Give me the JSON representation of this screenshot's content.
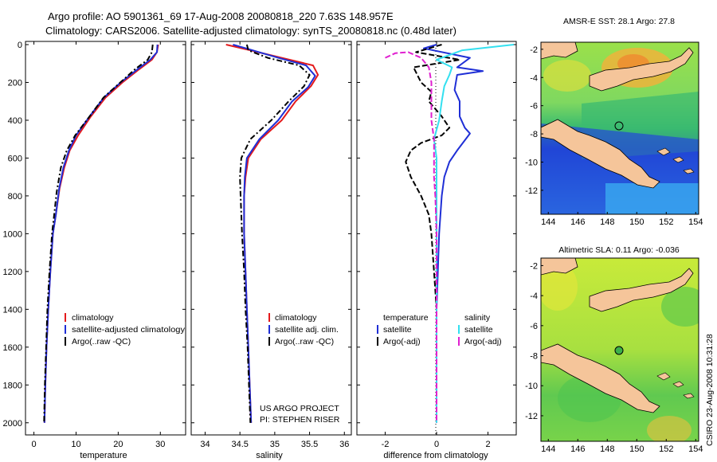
{
  "header": {
    "title_line1": "Argo profile: AO 5901361_69 17-Aug-2008 20080818_220 7.63S 148.957E",
    "title_line2": "Climatology: CARS2006. Satellite-adjusted climatology: synTS_20080818.nc (0.48d later)"
  },
  "credit": {
    "project": "US ARGO PROJECT",
    "pi": "PI: STEPHEN RISER",
    "stamp": "CSIRO 23-Aug-2008 10:31:28"
  },
  "colors": {
    "climatology": "#e41a1c",
    "satellite": "#1f2fd6",
    "argo": "#000000",
    "sat_sal": "#33e0f0",
    "argo_sal": "#e020d0",
    "land": "#f5c59a"
  },
  "chart_data": [
    {
      "type": "line",
      "name": "temperature-panel",
      "xlabel": "temperature",
      "ylabel": "",
      "xlim": [
        -2,
        36
      ],
      "ylim": [
        2060,
        0
      ],
      "xticks": [
        "0",
        "10",
        "20",
        "30"
      ],
      "xtick_values": [
        0,
        10,
        20,
        30
      ],
      "yticks": [
        "0",
        "200",
        "400",
        "600",
        "800",
        "1000",
        "1200",
        "1400",
        "1600",
        "1800",
        "2000"
      ],
      "ytick_values": [
        0,
        200,
        400,
        600,
        800,
        1000,
        1200,
        1400,
        1600,
        1800,
        2000
      ],
      "legend": [
        "climatology",
        "satellite-adjusted climatology",
        "Argo(..raw -QC)"
      ],
      "series": [
        {
          "name": "climatology",
          "color": "#e41a1c",
          "dash": "none",
          "points": [
            [
              29.5,
              0
            ],
            [
              29.2,
              40
            ],
            [
              28,
              80
            ],
            [
              25,
              130
            ],
            [
              21,
              200
            ],
            [
              17,
              280
            ],
            [
              13.5,
              380
            ],
            [
              10.5,
              480
            ],
            [
              8.5,
              560
            ],
            [
              7.2,
              650
            ],
            [
              6.1,
              760
            ],
            [
              5.2,
              900
            ],
            [
              4.5,
              1000
            ],
            [
              3.9,
              1200
            ],
            [
              3.4,
              1400
            ],
            [
              3,
              1600
            ],
            [
              2.7,
              1800
            ],
            [
              2.5,
              2000
            ]
          ]
        },
        {
          "name": "satellite-adjusted climatology",
          "color": "#1f2fd6",
          "dash": "none",
          "points": [
            [
              29.3,
              0
            ],
            [
              29.2,
              40
            ],
            [
              27.6,
              80
            ],
            [
              24.6,
              130
            ],
            [
              20.6,
              200
            ],
            [
              16.6,
              280
            ],
            [
              13.2,
              380
            ],
            [
              10,
              480
            ],
            [
              8.3,
              560
            ],
            [
              7,
              650
            ],
            [
              6,
              760
            ],
            [
              5.2,
              900
            ],
            [
              4.5,
              1000
            ],
            [
              3.9,
              1200
            ],
            [
              3.4,
              1400
            ],
            [
              3,
              1600
            ],
            [
              2.7,
              1800
            ],
            [
              2.5,
              2000
            ]
          ]
        },
        {
          "name": "Argo(..raw -QC)",
          "color": "#000000",
          "dash": "7,3,2,3",
          "points": [
            [
              28.2,
              0
            ],
            [
              28,
              40
            ],
            [
              27,
              80
            ],
            [
              24,
              130
            ],
            [
              20.5,
              200
            ],
            [
              16.5,
              280
            ],
            [
              13.2,
              380
            ],
            [
              9.8,
              480
            ],
            [
              7.8,
              560
            ],
            [
              6.4,
              650
            ],
            [
              5.4,
              780
            ],
            [
              4.8,
              900
            ],
            [
              4.3,
              1000
            ],
            [
              3.7,
              1200
            ],
            [
              3.2,
              1400
            ],
            [
              2.9,
              1600
            ],
            [
              2.6,
              1800
            ],
            [
              2.4,
              2000
            ]
          ]
        }
      ]
    },
    {
      "type": "line",
      "name": "salinity-panel",
      "xlabel": "salinity",
      "ylabel": "",
      "xlim": [
        33.8,
        36.1
      ],
      "ylim": [
        2060,
        0
      ],
      "xticks": [
        "34",
        "34.5",
        "35",
        "35.5",
        "36"
      ],
      "xtick_values": [
        34,
        34.5,
        35,
        35.5,
        36
      ],
      "legend": [
        "climatology",
        "satellite adj. clim.",
        "Argo(..raw -QC)"
      ],
      "series": [
        {
          "name": "climatology",
          "color": "#e41a1c",
          "dash": "none",
          "points": [
            [
              34.3,
              0
            ],
            [
              34.65,
              30
            ],
            [
              35.1,
              70
            ],
            [
              35.55,
              110
            ],
            [
              35.62,
              160
            ],
            [
              35.52,
              220
            ],
            [
              35.3,
              300
            ],
            [
              35.1,
              400
            ],
            [
              34.8,
              500
            ],
            [
              34.62,
              600
            ],
            [
              34.58,
              700
            ],
            [
              34.56,
              800
            ],
            [
              34.56,
              1000
            ],
            [
              34.58,
              1200
            ],
            [
              34.6,
              1400
            ],
            [
              34.62,
              1600
            ],
            [
              34.64,
              1800
            ],
            [
              34.66,
              2000
            ]
          ]
        },
        {
          "name": "satellite adj. clim.",
          "color": "#1f2fd6",
          "dash": "none",
          "points": [
            [
              34.4,
              0
            ],
            [
              34.68,
              30
            ],
            [
              35.05,
              70
            ],
            [
              35.45,
              110
            ],
            [
              35.58,
              165
            ],
            [
              35.48,
              225
            ],
            [
              35.25,
              300
            ],
            [
              35.05,
              400
            ],
            [
              34.78,
              500
            ],
            [
              34.6,
              600
            ],
            [
              34.57,
              700
            ],
            [
              34.56,
              800
            ],
            [
              34.56,
              1000
            ],
            [
              34.58,
              1200
            ],
            [
              34.6,
              1400
            ],
            [
              34.62,
              1600
            ],
            [
              34.64,
              1800
            ],
            [
              34.66,
              2000
            ]
          ]
        },
        {
          "name": "Argo(..raw -QC)",
          "color": "#000000",
          "dash": "7,3,2,3",
          "points": [
            [
              34.6,
              0
            ],
            [
              34.62,
              30
            ],
            [
              34.9,
              70
            ],
            [
              35.35,
              110
            ],
            [
              35.5,
              160
            ],
            [
              35.42,
              220
            ],
            [
              35.2,
              300
            ],
            [
              34.95,
              400
            ],
            [
              34.65,
              500
            ],
            [
              34.52,
              600
            ],
            [
              34.5,
              700
            ],
            [
              34.51,
              800
            ],
            [
              34.53,
              1000
            ],
            [
              34.56,
              1200
            ],
            [
              34.58,
              1400
            ],
            [
              34.61,
              1600
            ],
            [
              34.63,
              1800
            ],
            [
              34.65,
              2000
            ]
          ]
        }
      ]
    },
    {
      "type": "line",
      "name": "difference-panel",
      "xlabel": "difference from climatology",
      "ylabel": "",
      "xlim": [
        -3.1,
        3.1
      ],
      "ylim": [
        2060,
        0
      ],
      "xticks": [
        "-2",
        "0",
        "2"
      ],
      "xtick_values": [
        -2,
        0,
        2
      ],
      "legend_temperature_title": "temperature",
      "legend_salinity_title": "salinity",
      "legend": [
        "satellite",
        "Argo(-adj)",
        "satellite",
        "Argo(-adj)"
      ],
      "series": [
        {
          "name": "temperature satellite",
          "color": "#1f2fd6",
          "dash": "none",
          "points": [
            [
              0,
              0
            ],
            [
              -0.5,
              20
            ],
            [
              1.3,
              70
            ],
            [
              0.8,
              120
            ],
            [
              1.8,
              140
            ],
            [
              0.8,
              160
            ],
            [
              0.7,
              240
            ],
            [
              0.9,
              300
            ],
            [
              0.9,
              380
            ],
            [
              1.1,
              440
            ],
            [
              1.3,
              470
            ],
            [
              0.8,
              560
            ],
            [
              0.5,
              620
            ],
            [
              0.3,
              700
            ],
            [
              0.2,
              800
            ],
            [
              0.1,
              1000
            ],
            [
              0.05,
              1200
            ],
            [
              0,
              1400
            ],
            [
              0,
              2000
            ]
          ]
        },
        {
          "name": "temperature Argo(-adj)",
          "color": "#000000",
          "dash": "7,3",
          "points": [
            [
              0.2,
              0
            ],
            [
              -0.8,
              40
            ],
            [
              0.9,
              80
            ],
            [
              -0.9,
              120
            ],
            [
              -0.6,
              200
            ],
            [
              -0.2,
              250
            ],
            [
              -0.3,
              300
            ],
            [
              0.2,
              380
            ],
            [
              0.5,
              440
            ],
            [
              0.2,
              480
            ],
            [
              -0.6,
              520
            ],
            [
              -1.0,
              560
            ],
            [
              -1.2,
              620
            ],
            [
              -1.0,
              700
            ],
            [
              -0.6,
              800
            ],
            [
              -0.3,
              900
            ],
            [
              -0.2,
              1000
            ],
            [
              -0.1,
              1200
            ],
            [
              0,
              1400
            ],
            [
              0,
              2000
            ]
          ]
        },
        {
          "name": "salinity satellite",
          "color": "#33e0f0",
          "dash": "none",
          "points": [
            [
              3,
              0
            ],
            [
              1,
              30
            ],
            [
              0,
              80
            ],
            [
              0.6,
              120
            ],
            [
              0.5,
              160
            ],
            [
              0.3,
              220
            ],
            [
              0.2,
              300
            ],
            [
              0.1,
              400
            ],
            [
              -0.1,
              500
            ],
            [
              0,
              600
            ],
            [
              0,
              700
            ],
            [
              0,
              1000
            ],
            [
              0,
              1400
            ],
            [
              0,
              2000
            ]
          ]
        },
        {
          "name": "salinity Argo(-adj)",
          "color": "#e020d0",
          "dash": "7,3",
          "points": [
            [
              -2,
              70
            ],
            [
              -1.6,
              45
            ],
            [
              -1.1,
              40
            ],
            [
              -0.6,
              70
            ],
            [
              -0.3,
              120
            ],
            [
              -0.2,
              200
            ],
            [
              -0.2,
              300
            ],
            [
              -0.2,
              400
            ],
            [
              -0.1,
              500
            ],
            [
              -0.1,
              600
            ],
            [
              -0.1,
              700
            ],
            [
              -0.05,
              800
            ],
            [
              0,
              1000
            ],
            [
              0,
              2000
            ]
          ]
        }
      ]
    },
    {
      "type": "heatmap",
      "name": "sst-map",
      "title": "AMSR-E SST: 28.1  Argo: 27.8",
      "xticks": [
        "144",
        "146",
        "148",
        "150",
        "152",
        "154"
      ],
      "xtick_values": [
        144,
        146,
        148,
        150,
        152,
        154
      ],
      "yticks": [
        "-2",
        "-4",
        "-6",
        "-8",
        "-10",
        "-12"
      ],
      "ytick_values": [
        -2,
        -4,
        -6,
        -8,
        -10,
        -12
      ],
      "xlim": [
        143.5,
        154.2
      ],
      "ylim": [
        -13.7,
        -1.5
      ],
      "argo_position": [
        148.957,
        -7.63
      ]
    },
    {
      "type": "heatmap",
      "name": "sla-map",
      "title": "Altimetric SLA: 0.11  Argo: -0.036",
      "xticks": [
        "144",
        "146",
        "148",
        "150",
        "152",
        "154"
      ],
      "xtick_values": [
        144,
        146,
        148,
        150,
        152,
        154
      ],
      "yticks": [
        "-2",
        "-4",
        "-6",
        "-8",
        "-10",
        "-12"
      ],
      "ytick_values": [
        -2,
        -4,
        -6,
        -8,
        -10,
        -12
      ],
      "xlim": [
        143.5,
        154.2
      ],
      "ylim": [
        -13.7,
        -1.5
      ],
      "argo_position": [
        148.957,
        -7.63
      ]
    }
  ]
}
